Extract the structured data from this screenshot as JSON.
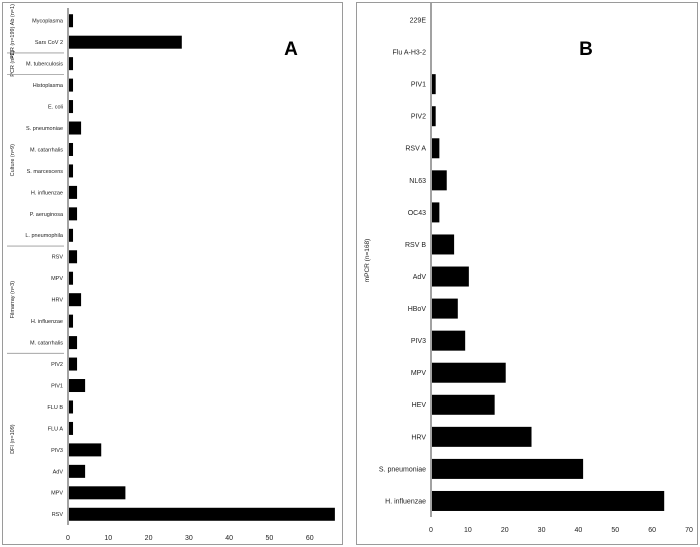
{
  "chart_data": [
    {
      "panel_letter": "A",
      "type": "bar",
      "orientation": "horizontal",
      "categories": [
        "Mycoplasma",
        "Sars CoV 2",
        "M. tuberculosis",
        "Histoplasma",
        "E. coli",
        "S. pneumoniae",
        "M. catarrhalis",
        "S. marcescens",
        "H. influenzae",
        "P. aeruginosa",
        "L. pneumophila",
        "RSV",
        "MPV",
        "HRV",
        "H. influenzae",
        "M. catarrhalis",
        "PIV2",
        "PIV1",
        "FLU B",
        "FLU A",
        "PIV3",
        "AdV",
        "MPV",
        "RSV"
      ],
      "values": [
        1,
        28,
        1,
        1,
        1,
        3,
        1,
        1,
        2,
        2,
        1,
        2,
        1,
        3,
        1,
        2,
        2,
        4,
        1,
        1,
        8,
        4,
        14,
        66
      ],
      "groups": [
        {
          "label": "PCR (n=199) Ab (n=1)",
          "start": 0,
          "end": 1
        },
        {
          "label": "PCR (n=2)",
          "start": 2,
          "end": 2
        },
        {
          "label": "Culture (n=9)",
          "start": 3,
          "end": 10
        },
        {
          "label": "Filmarray (n=3)",
          "start": 11,
          "end": 15
        },
        {
          "label": "DFI (n=109)",
          "start": 16,
          "end": 23
        }
      ],
      "xlim": [
        0,
        70
      ],
      "xticks": [
        0,
        10,
        20,
        30,
        40,
        50,
        60,
        70
      ],
      "bar_color": "#000000"
    },
    {
      "panel_letter": "B",
      "type": "bar",
      "orientation": "horizontal",
      "categories": [
        "229E",
        "Flu A-H3-2",
        "PIV1",
        "PIV2",
        "RSV A",
        "NL63",
        "OC43",
        "RSV B",
        "AdV",
        "HBoV",
        "PIV3",
        "MPV",
        "HEV",
        "HRV",
        "S. pneumoniae",
        "H. influenzae"
      ],
      "values": [
        0,
        0,
        1,
        1,
        2,
        4,
        2,
        6,
        10,
        7,
        9,
        20,
        17,
        27,
        41,
        63
      ],
      "ylabel": "mPCR (n=168)",
      "xlim": [
        0,
        70
      ],
      "xticks": [
        0,
        10,
        20,
        30,
        40,
        50,
        60,
        70
      ],
      "bar_color": "#000000"
    }
  ]
}
